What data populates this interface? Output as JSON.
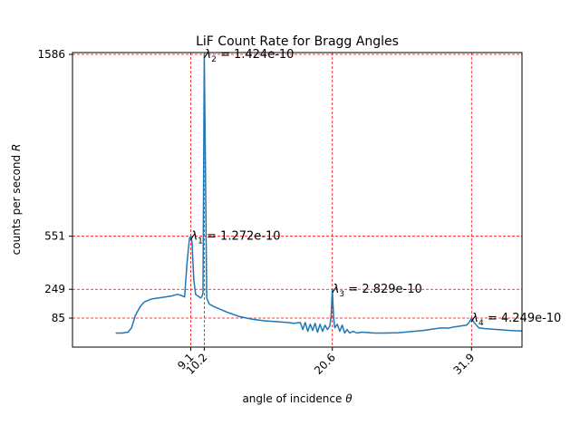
{
  "chart_data": {
    "type": "line",
    "title": "LiF Count Rate for Bragg Angles",
    "xlabel_text": "angle of incidence ",
    "xlabel_symbol": "θ",
    "ylabel_text": "counts per second ",
    "ylabel_symbol": "R",
    "xlim": [
      -0.5,
      36.0
    ],
    "ylim": [
      -80,
      1586
    ],
    "grid": false,
    "xticks": [
      {
        "value": 9.1,
        "label": "9.1"
      },
      {
        "value": 10.2,
        "label": "10.2"
      },
      {
        "value": 20.6,
        "label": "20.6"
      },
      {
        "value": 31.9,
        "label": "31.9"
      }
    ],
    "yticks": [
      {
        "value": 85,
        "label": "85"
      },
      {
        "value": 249,
        "label": "249"
      },
      {
        "value": 551,
        "label": "551"
      },
      {
        "value": 1586,
        "label": "1586"
      }
    ],
    "reference_lines": {
      "x": [
        9.1,
        10.2,
        20.6,
        31.9
      ],
      "y": [
        85,
        249,
        551,
        1586
      ],
      "color": "#ff0000"
    },
    "annotations": [
      {
        "symbol": "λ",
        "sub": "1",
        "text": " = 1.272e-10",
        "x": 9.1,
        "y": 551
      },
      {
        "symbol": "λ",
        "sub": "2",
        "text": " = 1.424e-10",
        "x": 10.2,
        "y": 1586
      },
      {
        "symbol": "λ",
        "sub": "3",
        "text": " = 2.829e-10",
        "x": 20.6,
        "y": 249
      },
      {
        "symbol": "λ",
        "sub": "4",
        "text": " = 4.249e-10",
        "x": 31.9,
        "y": 85
      }
    ],
    "series": [
      {
        "color": "#1f77b4",
        "x": [
          3.0,
          3.5,
          4.0,
          4.3,
          4.6,
          5.0,
          5.3,
          5.6,
          6.0,
          6.5,
          7.0,
          7.5,
          8.0,
          8.3,
          8.6,
          8.8,
          9.0,
          9.1,
          9.2,
          9.35,
          9.5,
          9.7,
          9.9,
          10.0,
          10.1,
          10.2,
          10.3,
          10.4,
          10.6,
          11.0,
          12.0,
          13.0,
          14.0,
          15.0,
          16.0,
          17.0,
          17.5,
          18.0,
          18.2,
          18.4,
          18.6,
          18.8,
          19.0,
          19.2,
          19.4,
          19.6,
          19.8,
          20.0,
          20.2,
          20.4,
          20.5,
          20.6,
          20.7,
          20.8,
          21.0,
          21.2,
          21.4,
          21.6,
          21.8,
          22.0,
          22.3,
          22.6,
          23.0,
          24.0,
          25.0,
          26.0,
          27.0,
          28.0,
          28.5,
          29.0,
          29.5,
          30.0,
          30.5,
          31.0,
          31.5,
          31.7,
          31.9,
          32.1,
          32.5,
          33.0,
          34.0,
          35.0,
          36.0
        ],
        "y": [
          0,
          0,
          5,
          30,
          100,
          150,
          175,
          185,
          195,
          200,
          205,
          210,
          220,
          215,
          205,
          400,
          540,
          551,
          520,
          300,
          220,
          210,
          200,
          205,
          230,
          1586,
          900,
          200,
          165,
          150,
          120,
          95,
          80,
          70,
          65,
          60,
          55,
          60,
          20,
          60,
          10,
          50,
          15,
          55,
          5,
          50,
          10,
          45,
          20,
          40,
          100,
          249,
          90,
          30,
          50,
          10,
          45,
          0,
          20,
          0,
          10,
          0,
          5,
          0,
          0,
          2,
          8,
          15,
          20,
          25,
          30,
          28,
          35,
          40,
          45,
          60,
          85,
          60,
          30,
          25,
          20,
          15,
          12
        ]
      }
    ]
  }
}
